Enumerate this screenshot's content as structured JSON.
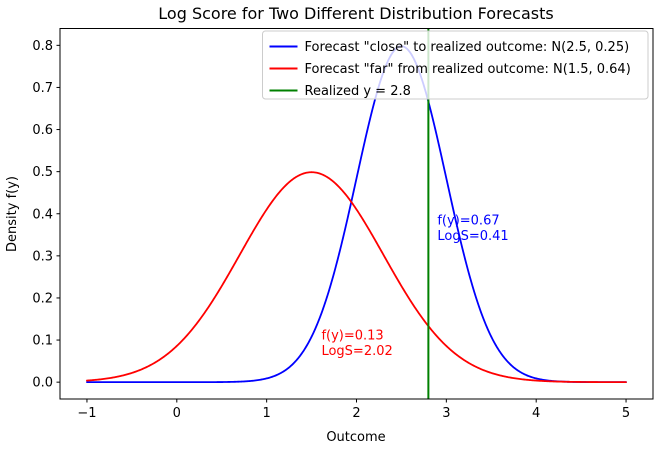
{
  "chart_data": {
    "type": "line",
    "title": "Log Score for Two Different Distribution Forecasts",
    "xlabel": "Outcome",
    "ylabel": "Density f(y)",
    "xlim": [
      -1.3,
      5.3
    ],
    "ylim": [
      -0.04,
      0.84
    ],
    "x_tick_values": [
      -1,
      0,
      1,
      2,
      3,
      4,
      5
    ],
    "x_tick_labels": [
      "−1",
      "0",
      "1",
      "2",
      "3",
      "4",
      "5"
    ],
    "y_tick_values": [
      0.0,
      0.1,
      0.2,
      0.3,
      0.4,
      0.5,
      0.6,
      0.7,
      0.8
    ],
    "y_tick_labels": [
      "0.0",
      "0.1",
      "0.2",
      "0.3",
      "0.4",
      "0.5",
      "0.6",
      "0.7",
      "0.8"
    ],
    "grid": false,
    "series": [
      {
        "name": "Forecast \"close\" to realized outcome: N(2.5, 0.25)",
        "distribution": "normal_pdf",
        "mean": 2.5,
        "variance": 0.25,
        "sd": 0.5,
        "peak_density": 0.7979,
        "x_start": -1,
        "x_end": 5,
        "color": "#0000ff",
        "linewidth": 1.8
      },
      {
        "name": "Forecast \"far\" from realized outcome: N(1.5, 0.64)",
        "distribution": "normal_pdf",
        "mean": 1.5,
        "variance": 0.64,
        "sd": 0.8,
        "peak_density": 0.4987,
        "x_start": -1,
        "x_end": 5,
        "color": "#ff0000",
        "linewidth": 1.8
      }
    ],
    "vline": {
      "label": "Realized y = 2.8",
      "x": 2.8,
      "color": "#008000",
      "linewidth": 2
    },
    "legend": {
      "position": "upper right",
      "frame_fill": "rgba(255,255,255,0.8)",
      "frame_edge": "#cccccc",
      "items": [
        {
          "label": "Forecast \"close\" to realized outcome: N(2.5, 0.25)",
          "color": "#0000ff"
        },
        {
          "label": "Forecast \"far\" from realized outcome: N(1.5, 0.64)",
          "color": "#ff0000"
        },
        {
          "label": "Realized y = 2.8",
          "color": "#008000"
        }
      ]
    },
    "annotations": [
      {
        "lines": [
          "f(y)=0.67",
          "LogS=0.41"
        ],
        "color": "#0000ff",
        "x": 2.9,
        "y": 0.405
      },
      {
        "lines": [
          "f(y)=0.13",
          "LogS=2.02"
        ],
        "color": "#ff0000",
        "x": 1.61,
        "y": 0.132
      }
    ]
  }
}
